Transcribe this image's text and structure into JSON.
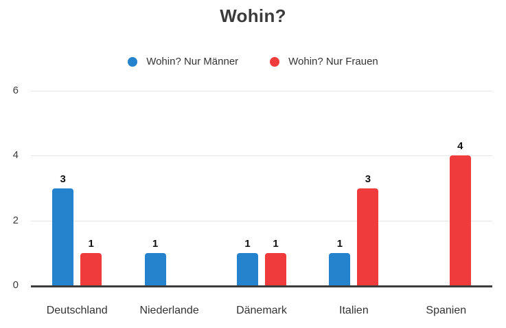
{
  "chart_data": {
    "type": "bar",
    "title": "Wohin?",
    "categories": [
      "Deutschland",
      "Niederlande",
      "Dänemark",
      "Italien",
      "Spanien"
    ],
    "series": [
      {
        "name": "Wohin? Nur Männer",
        "color": "#2583CE",
        "values": [
          3,
          1,
          1,
          1,
          0
        ]
      },
      {
        "name": "Wohin? Nur Frauen",
        "color": "#EF3B3C",
        "values": [
          1,
          0,
          1,
          3,
          4
        ]
      }
    ],
    "yticks": [
      0,
      2,
      4,
      6
    ],
    "ylim": [
      0,
      6
    ],
    "grid": true,
    "legend_position": "top",
    "colors": {
      "title_text": "#3b3b3b",
      "axis_text": "#3c3c3c",
      "value_label_text": "#111111",
      "gridline": "#e5e5e5",
      "baseline": "#3c3c3c",
      "background": "#ffffff"
    }
  }
}
